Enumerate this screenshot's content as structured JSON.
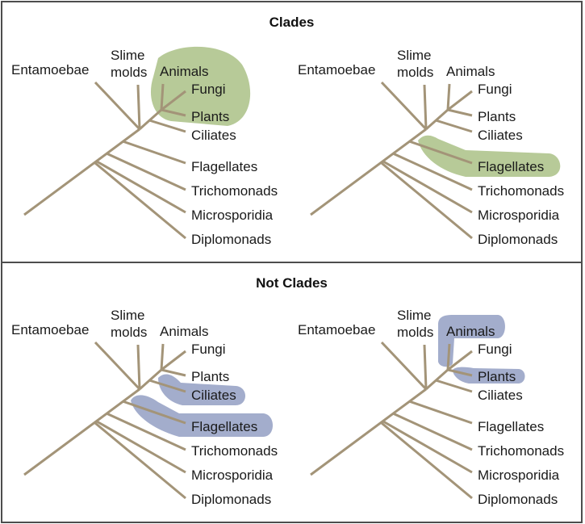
{
  "sections": {
    "top_title": "Clades",
    "bottom_title": "Not Clades"
  },
  "taxa": {
    "entamoebae": "Entamoebae",
    "slime_molds_1": "Slime",
    "slime_molds_2": "molds",
    "animals": "Animals",
    "fungi": "Fungi",
    "plants": "Plants",
    "ciliates": "Ciliates",
    "flagellates": "Flagellates",
    "trichomonads": "Trichomonads",
    "microsporidia": "Microsporidia",
    "diplomonads": "Diplomonads"
  },
  "highlights": {
    "clade_color": "#b7ca98",
    "not_clade_color": "#a3adcc",
    "tree_color": "#a39478"
  }
}
